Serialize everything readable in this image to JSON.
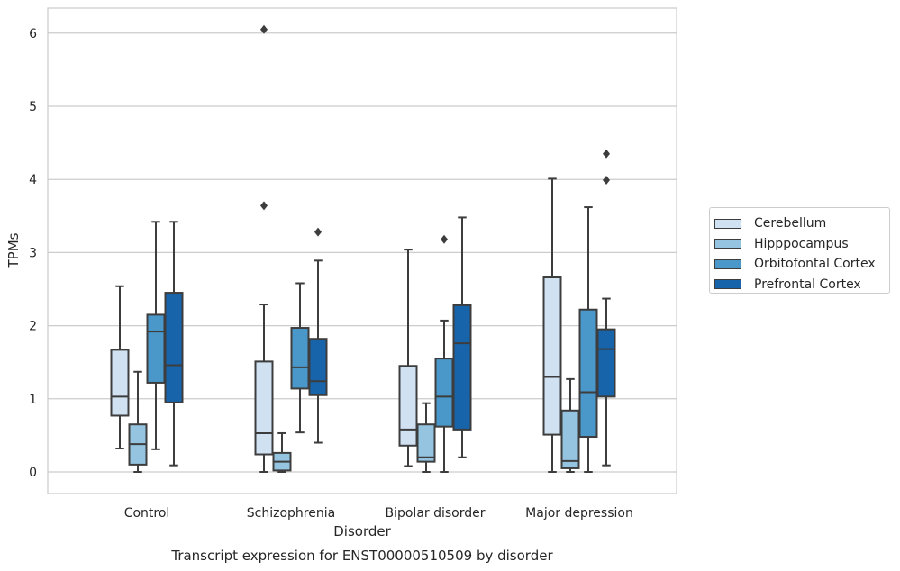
{
  "chart_data": {
    "type": "boxplot",
    "caption": "Transcript expression for ENST00000510509 by disorder",
    "xlabel": "Disorder",
    "ylabel": "TPMs",
    "ylim": [
      -0.3,
      6.35
    ],
    "yticks": [
      0,
      1,
      2,
      3,
      4,
      5,
      6
    ],
    "grid": "horizontal",
    "legend_position": "right",
    "categories": [
      "Control",
      "Schizophrenia",
      "Bipolar disorder",
      "Major depression"
    ],
    "series": [
      {
        "name": "Cerebellum",
        "color": "#d0e1f2",
        "boxes": [
          {
            "whislo": 0.32,
            "q1": 0.77,
            "med": 1.03,
            "q3": 1.67,
            "whishi": 2.54,
            "fliers": []
          },
          {
            "whislo": 0.0,
            "q1": 0.24,
            "med": 0.53,
            "q3": 1.51,
            "whishi": 2.29,
            "fliers": [
              3.64,
              6.05
            ]
          },
          {
            "whislo": 0.08,
            "q1": 0.36,
            "med": 0.58,
            "q3": 1.45,
            "whishi": 3.04,
            "fliers": []
          },
          {
            "whislo": 0.0,
            "q1": 0.51,
            "med": 1.3,
            "q3": 2.66,
            "whishi": 4.01,
            "fliers": []
          }
        ]
      },
      {
        "name": "Hipppocampus",
        "color": "#94c4df",
        "boxes": [
          {
            "whislo": 0.0,
            "q1": 0.1,
            "med": 0.38,
            "q3": 0.65,
            "whishi": 1.37,
            "fliers": []
          },
          {
            "whislo": 0.0,
            "q1": 0.02,
            "med": 0.14,
            "q3": 0.26,
            "whishi": 0.53,
            "fliers": []
          },
          {
            "whislo": 0.0,
            "q1": 0.14,
            "med": 0.2,
            "q3": 0.65,
            "whishi": 0.94,
            "fliers": []
          },
          {
            "whislo": 0.0,
            "q1": 0.05,
            "med": 0.15,
            "q3": 0.84,
            "whishi": 1.27,
            "fliers": []
          }
        ]
      },
      {
        "name": "Orbitofontal Cortex",
        "color": "#4a98c9",
        "boxes": [
          {
            "whislo": 0.31,
            "q1": 1.22,
            "med": 1.92,
            "q3": 2.15,
            "whishi": 3.42,
            "fliers": []
          },
          {
            "whislo": 0.54,
            "q1": 1.14,
            "med": 1.43,
            "q3": 1.97,
            "whishi": 2.58,
            "fliers": []
          },
          {
            "whislo": 0.0,
            "q1": 0.62,
            "med": 1.03,
            "q3": 1.55,
            "whishi": 2.07,
            "fliers": [
              3.18
            ]
          },
          {
            "whislo": 0.0,
            "q1": 0.48,
            "med": 1.09,
            "q3": 2.22,
            "whishi": 3.62,
            "fliers": []
          }
        ]
      },
      {
        "name": "Prefrontal Cortex",
        "color": "#1764ab",
        "boxes": [
          {
            "whislo": 0.09,
            "q1": 0.95,
            "med": 1.46,
            "q3": 2.45,
            "whishi": 3.42,
            "fliers": []
          },
          {
            "whislo": 0.4,
            "q1": 1.05,
            "med": 1.24,
            "q3": 1.82,
            "whishi": 2.89,
            "fliers": [
              3.28
            ]
          },
          {
            "whislo": 0.2,
            "q1": 0.58,
            "med": 1.76,
            "q3": 2.28,
            "whishi": 3.48,
            "fliers": []
          },
          {
            "whislo": 0.09,
            "q1": 1.03,
            "med": 1.68,
            "q3": 1.95,
            "whishi": 2.37,
            "fliers": [
              3.99,
              4.35
            ]
          }
        ]
      }
    ]
  }
}
